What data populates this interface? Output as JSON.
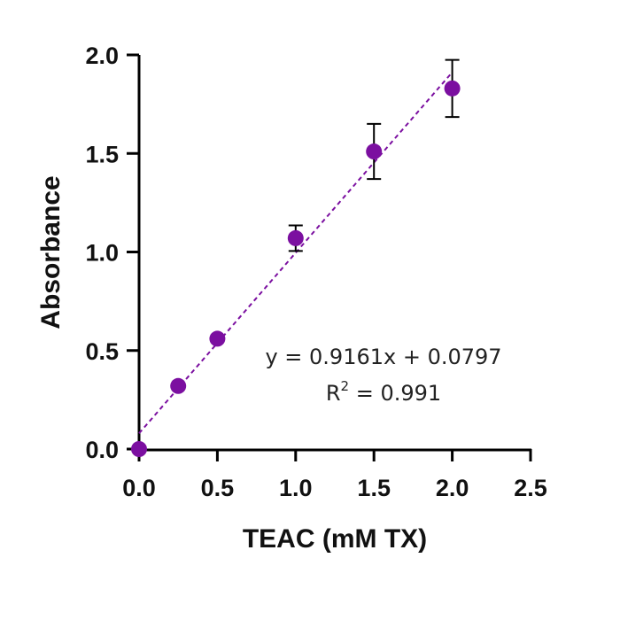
{
  "chart_data": {
    "type": "scatter",
    "title": "",
    "xlabel": "TEAC (mM TX)",
    "ylabel": "Absorbance",
    "xlim": [
      0,
      2.5
    ],
    "ylim": [
      0,
      2.0
    ],
    "x_ticks": [
      "0.0",
      "0.5",
      "1.0",
      "1.5",
      "2.0",
      "2.5"
    ],
    "y_ticks": [
      "0.0",
      "0.5",
      "1.0",
      "1.5",
      "2.0"
    ],
    "grid": false,
    "series": [
      {
        "x": [
          0,
          0.25,
          0.5,
          1.0,
          1.5,
          2.0
        ],
        "y": [
          0,
          0.32,
          0.56,
          1.07,
          1.51,
          1.83
        ],
        "error": [
          0,
          0,
          0,
          0.065,
          0.14,
          0.145
        ],
        "color": "#7B0FA0"
      }
    ],
    "fit_line": {
      "slope": 0.9161,
      "intercept": 0.0797,
      "x_range": [
        0,
        2.0
      ],
      "style": "dashed",
      "color": "#7B0FA0"
    },
    "annotations": {
      "equation": "y = 0.9161x + 0.0797",
      "r2_prefix": "R",
      "r2_sup": "2",
      "r2_value": " = 0.991"
    }
  }
}
